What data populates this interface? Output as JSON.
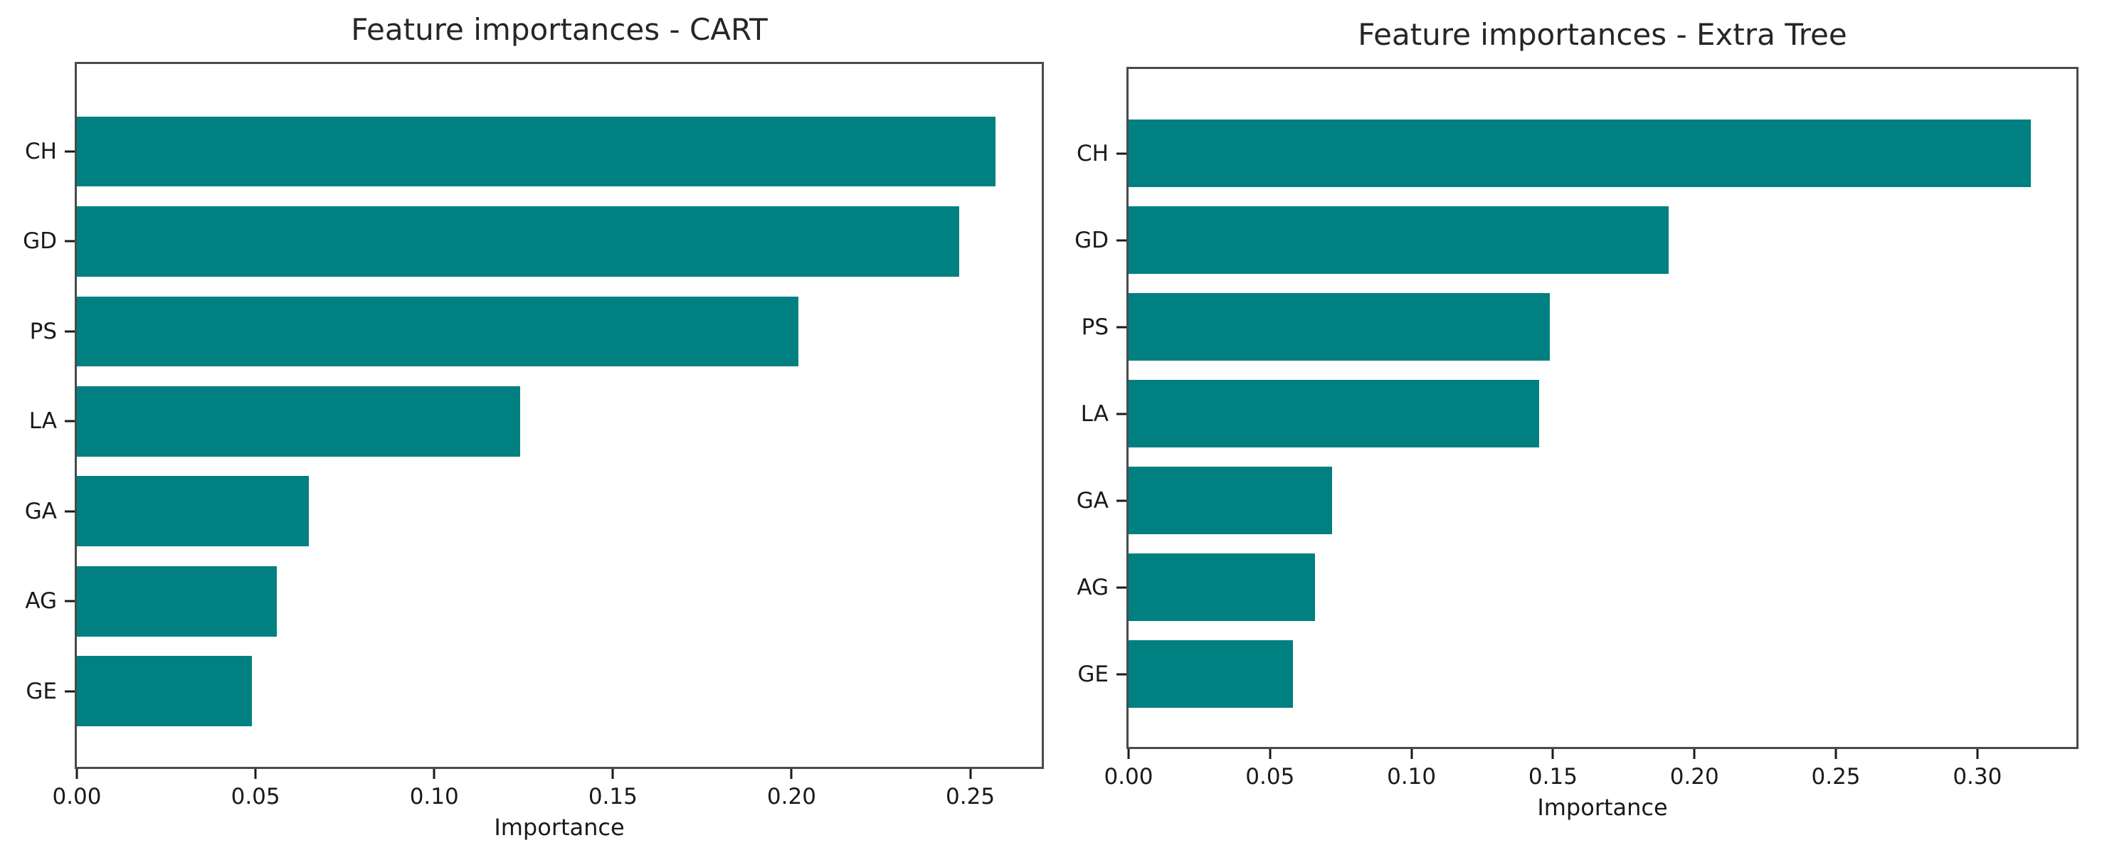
{
  "figure": {
    "background": "#ffffff",
    "bar_color": "#008080",
    "spine_color": "#4a4a4a",
    "text_color": "#1a1a1a"
  },
  "chart_data": [
    {
      "type": "bar",
      "orientation": "horizontal",
      "title": "Feature importances - CART",
      "xlabel": "Importance",
      "ylabel": "",
      "categories": [
        "CH",
        "GD",
        "PS",
        "LA",
        "GA",
        "AG",
        "GE"
      ],
      "values": [
        0.257,
        0.247,
        0.202,
        0.124,
        0.065,
        0.056,
        0.049
      ],
      "xlim": [
        0,
        0.27
      ],
      "xticks": [
        0,
        0.05,
        0.1,
        0.15,
        0.2,
        0.25
      ],
      "grid": false,
      "legend": "none",
      "bar_color": "#008080"
    },
    {
      "type": "bar",
      "orientation": "horizontal",
      "title": "Feature importances - Extra Tree",
      "xlabel": "Importance",
      "ylabel": "",
      "categories": [
        "CH",
        "GD",
        "PS",
        "LA",
        "GA",
        "AG",
        "GE"
      ],
      "values": [
        0.319,
        0.191,
        0.149,
        0.145,
        0.072,
        0.066,
        0.058
      ],
      "xlim": [
        0,
        0.335
      ],
      "xticks": [
        0,
        0.05,
        0.1,
        0.15,
        0.2,
        0.25,
        0.3
      ],
      "grid": false,
      "legend": "none",
      "bar_color": "#008080"
    }
  ]
}
